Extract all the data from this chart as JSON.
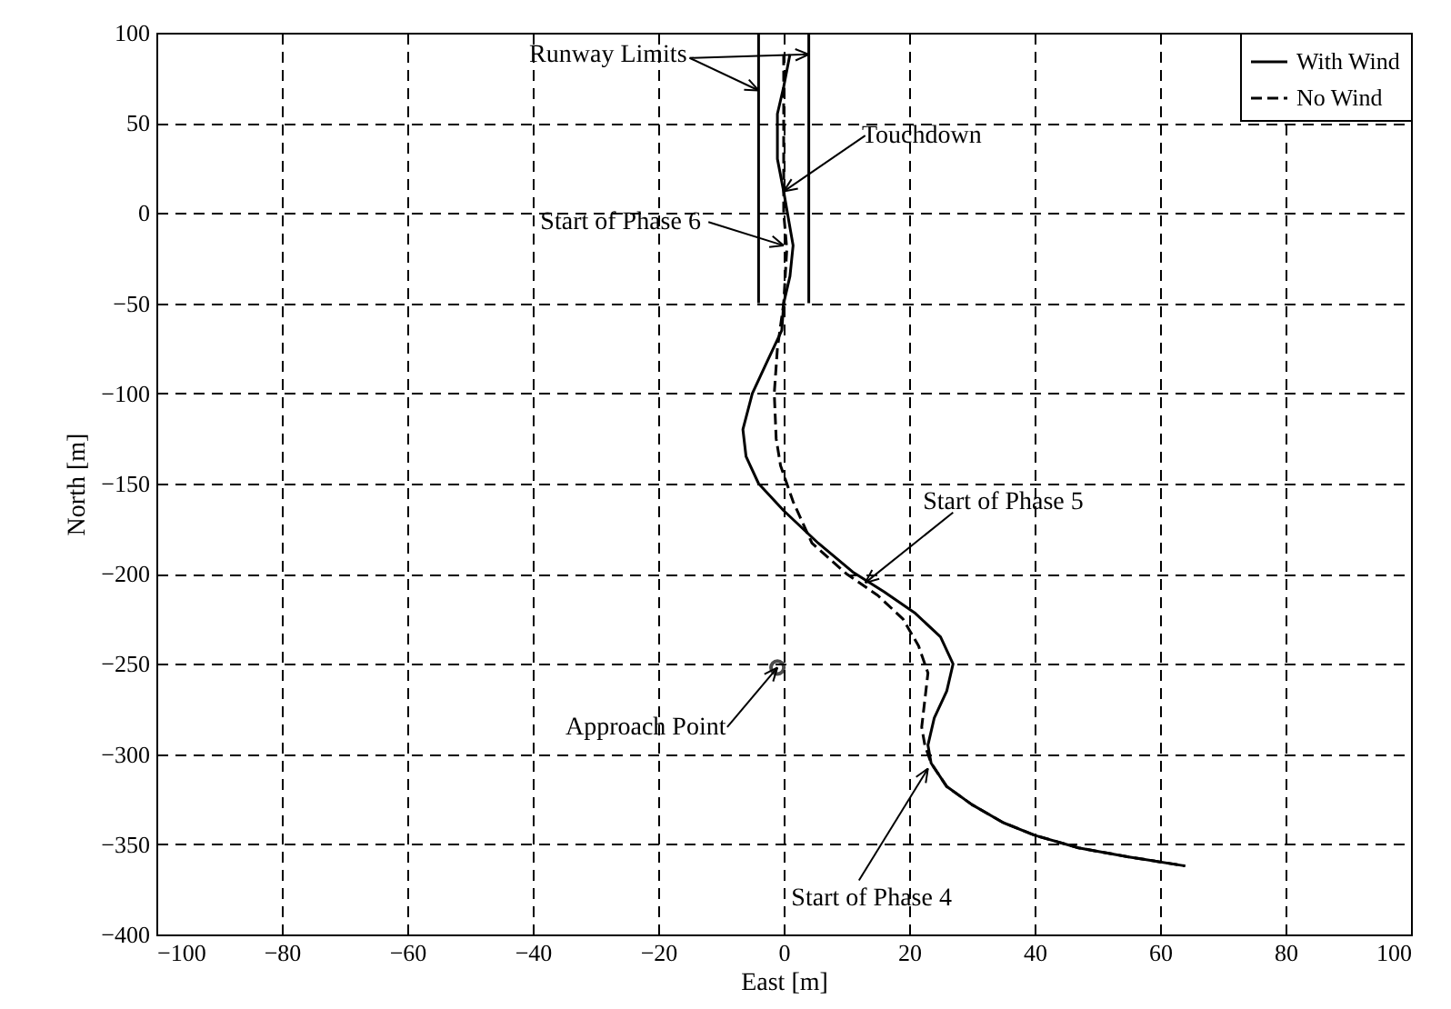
{
  "chart_data": {
    "type": "line",
    "xlabel": "East [m]",
    "ylabel": "North [m]",
    "xlim": [
      -100,
      100
    ],
    "xticks": [
      -100,
      -80,
      -60,
      -40,
      -20,
      0,
      20,
      40,
      60,
      80,
      100
    ],
    "ylim": [
      -400,
      100
    ],
    "yticks": [
      -400,
      -350,
      -300,
      -250,
      -200,
      -150,
      -100,
      -50,
      0,
      50,
      100
    ],
    "grid": true,
    "legend": "top right",
    "series": [
      {
        "name": "With Wind",
        "color": "#000000",
        "line_style": "solid",
        "x": [
          1,
          0,
          -1,
          -1,
          0,
          1.5,
          1,
          0,
          -0.3,
          -3,
          -5,
          -6.5,
          -6,
          -4,
          0,
          5.5,
          11,
          16,
          21,
          25,
          27,
          26,
          24,
          23,
          23.5,
          26,
          30,
          35,
          40,
          47,
          55,
          64
        ],
        "values": [
          88,
          70,
          55,
          30,
          12,
          -18,
          -35,
          -50,
          -65,
          -85,
          -100,
          -120,
          -135,
          -150,
          -165,
          -183,
          -199,
          -210,
          -222,
          -235,
          -250,
          -265,
          -280,
          -295,
          -305,
          -318,
          -328,
          -338,
          -345,
          -352,
          -357,
          -362
        ]
      },
      {
        "name": "No Wind",
        "color": "#000000",
        "line_style": "dashed",
        "x": [
          0,
          0,
          0,
          0,
          0.5,
          0,
          -1,
          -1.5,
          -1.2,
          -0.5,
          1.5,
          4.5,
          10,
          15,
          19,
          21.5,
          23,
          22.5,
          22,
          22.5,
          23.5,
          26,
          30,
          35,
          40,
          47,
          55,
          64
        ],
        "values": [
          88,
          60,
          30,
          0,
          -20,
          -50,
          -75,
          -100,
          -125,
          -140,
          -160,
          -183,
          -200,
          -212,
          -225,
          -240,
          -255,
          -270,
          -285,
          -295,
          -305,
          -318,
          -328,
          -338,
          -345,
          -352,
          -357,
          -362
        ]
      },
      {
        "color": "#000000",
        "line_style": "solid",
        "x": [
          -4,
          -4
        ],
        "values": [
          -50,
          100
        ]
      },
      {
        "color": "#000000",
        "line_style": "solid",
        "x": [
          4,
          4
        ],
        "values": [
          -50,
          100
        ]
      },
      {
        "type": "scatter",
        "marker": "circle",
        "color": "#000000",
        "x": [
          -1
        ],
        "values": [
          -252
        ]
      }
    ],
    "annotations": [
      {
        "text": "Runway Limits",
        "x": -4,
        "y": 68
      },
      {
        "text": "Touchdown",
        "x": 0,
        "y": 12
      },
      {
        "text": "Start of Phase 6",
        "x": 0,
        "y": -18
      },
      {
        "text": "Start of Phase 5",
        "x": 13,
        "y": -205
      },
      {
        "text": "Approach Point",
        "x": -1,
        "y": -252
      },
      {
        "text": "Start of Phase 4",
        "x": 23,
        "y": -308
      }
    ]
  }
}
